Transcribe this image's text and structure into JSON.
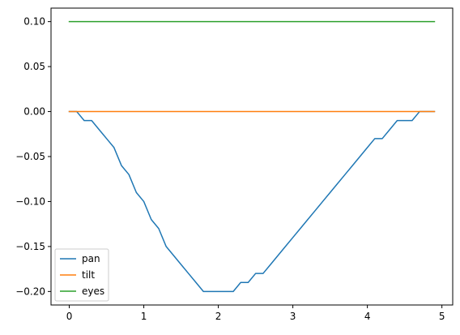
{
  "chart_data": {
    "type": "line",
    "title": "",
    "xlabel": "",
    "ylabel": "",
    "xlim": [
      -0.245,
      5.145
    ],
    "ylim": [
      -0.215,
      0.115
    ],
    "x_ticks": [
      0,
      1,
      2,
      3,
      4,
      5
    ],
    "y_ticks": [
      0.1,
      0.05,
      0.0,
      -0.05,
      -0.1,
      -0.15,
      -0.2
    ],
    "x_tick_labels": [
      "0",
      "1",
      "2",
      "3",
      "4",
      "5"
    ],
    "y_tick_labels": [
      "0.10",
      "0.05",
      "0.00",
      "−0.05",
      "−0.10",
      "−0.15",
      "−0.20"
    ],
    "grid": false,
    "legend_position": "lower-left",
    "x": [
      0.0,
      0.1,
      0.2,
      0.3,
      0.4,
      0.5,
      0.6,
      0.7,
      0.8,
      0.9,
      1.0,
      1.1,
      1.2,
      1.3,
      1.4,
      1.5,
      1.6,
      1.7,
      1.8,
      1.9,
      2.0,
      2.1,
      2.2,
      2.3,
      2.4,
      2.5,
      2.6,
      2.7,
      2.8,
      2.9,
      3.0,
      3.1,
      3.2,
      3.3,
      3.4,
      3.5,
      3.6,
      3.7,
      3.8,
      3.9,
      4.0,
      4.1,
      4.2,
      4.3,
      4.4,
      4.5,
      4.6,
      4.7,
      4.8,
      4.9
    ],
    "series": [
      {
        "name": "pan",
        "color": "#1f77b4",
        "values": [
          0.0,
          0.0,
          -0.01,
          -0.01,
          -0.02,
          -0.03,
          -0.04,
          -0.06,
          -0.07,
          -0.09,
          -0.1,
          -0.12,
          -0.13,
          -0.15,
          -0.16,
          -0.17,
          -0.18,
          -0.19,
          -0.2,
          -0.2,
          -0.2,
          -0.2,
          -0.2,
          -0.19,
          -0.19,
          -0.18,
          -0.18,
          -0.17,
          -0.16,
          -0.15,
          -0.14,
          -0.13,
          -0.12,
          -0.11,
          -0.1,
          -0.09,
          -0.08,
          -0.07,
          -0.06,
          -0.05,
          -0.04,
          -0.03,
          -0.03,
          -0.02,
          -0.01,
          -0.01,
          -0.01,
          0.0,
          0.0,
          0.0
        ]
      },
      {
        "name": "tilt",
        "color": "#ff7f0e",
        "values": [
          0.0,
          0.0,
          0.0,
          0.0,
          0.0,
          0.0,
          0.0,
          0.0,
          0.0,
          0.0,
          0.0,
          0.0,
          0.0,
          0.0,
          0.0,
          0.0,
          0.0,
          0.0,
          0.0,
          0.0,
          0.0,
          0.0,
          0.0,
          0.0,
          0.0,
          0.0,
          0.0,
          0.0,
          0.0,
          0.0,
          0.0,
          0.0,
          0.0,
          0.0,
          0.0,
          0.0,
          0.0,
          0.0,
          0.0,
          0.0,
          0.0,
          0.0,
          0.0,
          0.0,
          0.0,
          0.0,
          0.0,
          0.0,
          0.0,
          0.0
        ]
      },
      {
        "name": "eyes",
        "color": "#2ca02c",
        "values": [
          0.1,
          0.1,
          0.1,
          0.1,
          0.1,
          0.1,
          0.1,
          0.1,
          0.1,
          0.1,
          0.1,
          0.1,
          0.1,
          0.1,
          0.1,
          0.1,
          0.1,
          0.1,
          0.1,
          0.1,
          0.1,
          0.1,
          0.1,
          0.1,
          0.1,
          0.1,
          0.1,
          0.1,
          0.1,
          0.1,
          0.1,
          0.1,
          0.1,
          0.1,
          0.1,
          0.1,
          0.1,
          0.1,
          0.1,
          0.1,
          0.1,
          0.1,
          0.1,
          0.1,
          0.1,
          0.1,
          0.1,
          0.1,
          0.1,
          0.1
        ]
      }
    ]
  }
}
